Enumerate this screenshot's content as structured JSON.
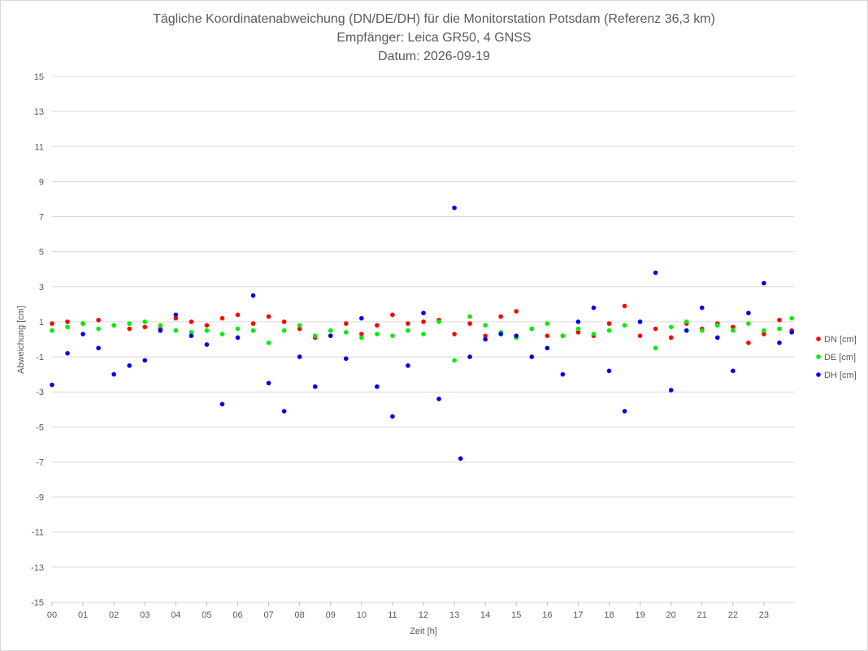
{
  "chart_data": {
    "type": "scatter",
    "title_lines": [
      "Tägliche Koordinatenabweichung (DN/DE/DH) für die Monitorstation Potsdam (Referenz 36,3 km)",
      "Empfänger: Leica GR50, 4 GNSS",
      "Datum: 2026-09-19"
    ],
    "xlabel": "Zeit [h]",
    "ylabel": "Abweichung [cm]",
    "xlim": [
      0,
      24
    ],
    "ylim": [
      -15,
      15
    ],
    "x_ticks": [
      "00",
      "01",
      "02",
      "03",
      "04",
      "05",
      "06",
      "07",
      "08",
      "09",
      "10",
      "11",
      "12",
      "13",
      "14",
      "15",
      "16",
      "17",
      "18",
      "19",
      "20",
      "21",
      "22",
      "23"
    ],
    "y_ticks": [
      15,
      13,
      11,
      9,
      7,
      5,
      3,
      1,
      -1,
      -3,
      -5,
      -7,
      -9,
      -11,
      -13,
      -15
    ],
    "gridlines": "horizontal",
    "legend_position": "right",
    "series": [
      {
        "name": "DN [cm]",
        "color": "#ff0000",
        "x": [
          0.0,
          0.5,
          1.0,
          1.5,
          2.0,
          2.5,
          3.0,
          3.5,
          4.0,
          4.5,
          5.0,
          5.5,
          6.0,
          6.5,
          7.0,
          7.5,
          8.0,
          8.5,
          9.0,
          9.5,
          10.0,
          10.5,
          11.0,
          11.5,
          12.0,
          12.5,
          13.0,
          13.5,
          14.0,
          14.5,
          15.0,
          15.5,
          16.0,
          16.5,
          17.0,
          17.5,
          18.0,
          18.5,
          19.0,
          19.5,
          20.0,
          20.5,
          21.0,
          21.5,
          22.0,
          22.5,
          23.0,
          23.5,
          23.9
        ],
        "y": [
          0.9,
          1.0,
          0.9,
          1.1,
          0.8,
          0.6,
          0.7,
          0.6,
          1.2,
          1.0,
          0.8,
          1.2,
          1.4,
          0.9,
          1.3,
          1.0,
          0.6,
          0.1,
          0.2,
          0.9,
          0.3,
          0.8,
          1.4,
          0.9,
          1.0,
          1.1,
          0.3,
          0.9,
          0.2,
          1.3,
          1.6,
          0.6,
          0.2,
          0.2,
          0.4,
          0.2,
          0.9,
          1.9,
          0.2,
          0.6,
          0.1,
          0.9,
          0.6,
          0.9,
          0.7,
          -0.2,
          0.3,
          1.1,
          0.5
        ]
      },
      {
        "name": "DE [cm]",
        "color": "#00ee00",
        "x": [
          0.0,
          0.5,
          1.0,
          1.5,
          2.0,
          2.5,
          3.0,
          3.5,
          4.0,
          4.5,
          5.0,
          5.5,
          6.0,
          6.5,
          7.0,
          7.5,
          8.0,
          8.5,
          9.0,
          9.5,
          10.0,
          10.5,
          11.0,
          11.5,
          12.0,
          12.5,
          13.0,
          13.5,
          14.0,
          14.5,
          15.0,
          15.5,
          16.0,
          16.5,
          17.0,
          17.5,
          18.0,
          18.5,
          19.0,
          19.5,
          20.0,
          20.5,
          21.0,
          21.5,
          22.0,
          22.5,
          23.0,
          23.5,
          23.9
        ],
        "y": [
          0.5,
          0.7,
          0.9,
          0.6,
          0.8,
          0.9,
          1.0,
          0.8,
          0.5,
          0.4,
          0.5,
          0.3,
          0.6,
          0.5,
          -0.2,
          0.5,
          0.8,
          0.2,
          0.5,
          0.4,
          0.1,
          0.3,
          0.2,
          0.5,
          0.3,
          1.0,
          -1.2,
          1.3,
          0.8,
          0.4,
          0.1,
          0.6,
          0.9,
          0.2,
          0.6,
          0.3,
          0.5,
          0.8,
          1.0,
          -0.5,
          0.7,
          1.0,
          0.5,
          0.8,
          0.5,
          0.9,
          0.5,
          0.6,
          1.2
        ]
      },
      {
        "name": "DH [cm]",
        "color": "#0000ee",
        "x": [
          0.0,
          0.5,
          1.0,
          1.5,
          2.0,
          2.5,
          3.0,
          3.5,
          4.0,
          4.5,
          5.0,
          5.5,
          6.0,
          6.5,
          7.0,
          7.5,
          8.0,
          8.5,
          9.0,
          9.5,
          10.0,
          10.5,
          11.0,
          11.5,
          12.0,
          12.5,
          13.0,
          13.2,
          13.5,
          14.0,
          14.5,
          15.0,
          15.5,
          16.0,
          16.5,
          17.0,
          17.5,
          18.0,
          18.5,
          19.0,
          19.5,
          20.0,
          20.5,
          21.0,
          21.5,
          22.0,
          22.5,
          23.0,
          23.5,
          23.9
        ],
        "y": [
          -2.6,
          -0.8,
          0.3,
          -0.5,
          -2.0,
          -1.5,
          -1.2,
          0.5,
          1.4,
          0.2,
          -0.3,
          -3.7,
          0.1,
          2.5,
          -2.5,
          -4.1,
          -1.0,
          -2.7,
          0.2,
          -1.1,
          1.2,
          -2.7,
          -4.4,
          -1.5,
          1.5,
          -3.4,
          7.5,
          -6.8,
          -1.0,
          0.0,
          0.3,
          0.2,
          -1.0,
          -0.5,
          -2.0,
          1.0,
          1.8,
          -1.8,
          -4.1,
          1.0,
          3.8,
          -2.9,
          0.5,
          1.8,
          0.1,
          -1.8,
          1.5,
          3.2,
          -0.2,
          0.4
        ]
      }
    ]
  }
}
